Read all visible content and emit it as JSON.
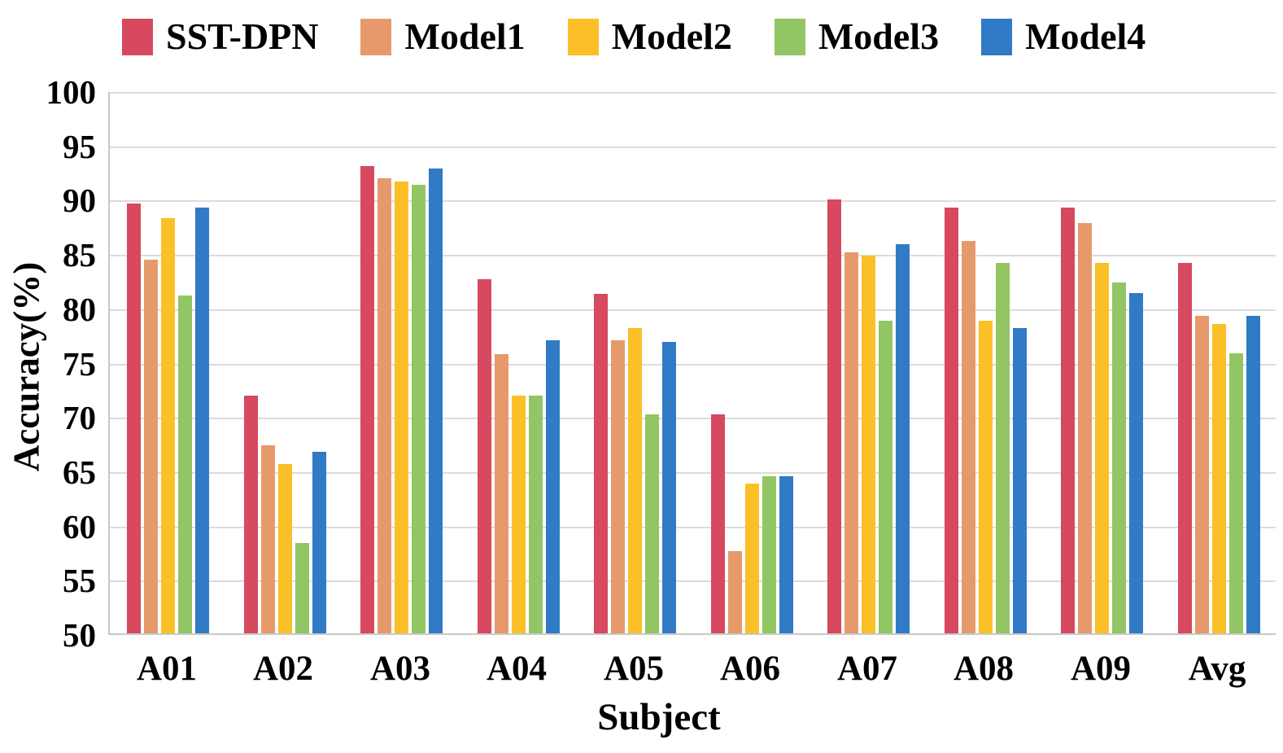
{
  "figure": {
    "background": "#ffffff"
  },
  "axis": {
    "x_title": "Subject",
    "y_title": "Accuracy(%)"
  },
  "chart_data": {
    "type": "bar",
    "title": "",
    "xlabel": "Subject",
    "ylabel": "Accuracy(%)",
    "ylim": [
      50,
      100
    ],
    "yticks": [
      100,
      95,
      90,
      85,
      80,
      75,
      70,
      65,
      60,
      55,
      50
    ],
    "grid": "horizontal-light-gray",
    "legend_position": "top",
    "categories": [
      "A01",
      "A02",
      "A03",
      "A04",
      "A05",
      "A06",
      "A07",
      "A08",
      "A09",
      "Avg"
    ],
    "series": [
      {
        "name": "SST-DPN",
        "color": "#D6495E",
        "values": [
          89.58,
          71.88,
          93.06,
          82.64,
          81.25,
          70.14,
          89.93,
          89.24,
          89.24,
          84.11
        ]
      },
      {
        "name": "Model1",
        "color": "#E69A6B",
        "values": [
          84.4,
          67.3,
          91.9,
          75.7,
          77.0,
          57.6,
          85.1,
          86.1,
          87.8,
          79.2
        ]
      },
      {
        "name": "Model2",
        "color": "#FBBF27",
        "values": [
          88.2,
          65.6,
          91.6,
          71.9,
          78.1,
          63.8,
          84.8,
          78.8,
          84.1,
          78.5
        ]
      },
      {
        "name": "Model3",
        "color": "#92C563",
        "values": [
          81.1,
          58.3,
          91.3,
          71.9,
          70.2,
          64.5,
          78.8,
          84.1,
          82.3,
          75.8
        ]
      },
      {
        "name": "Model4",
        "color": "#317AC6",
        "values": [
          89.2,
          66.7,
          92.8,
          77.0,
          76.8,
          64.5,
          85.8,
          78.1,
          81.3,
          79.2
        ]
      }
    ]
  },
  "colors": {
    "gridline": "#dcdcdc",
    "axis_line": "#c9c9c9",
    "text": "#000000"
  }
}
